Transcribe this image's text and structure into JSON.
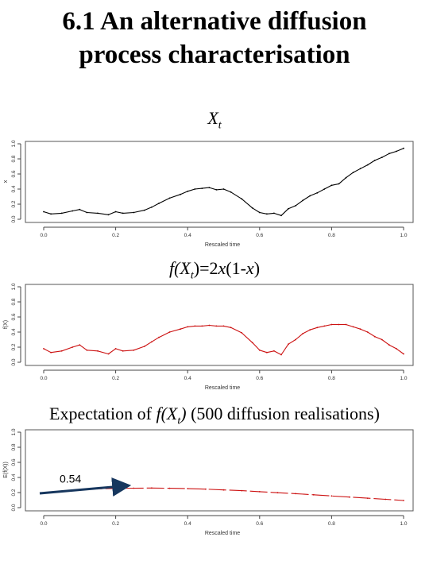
{
  "slide": {
    "title_line1": "6.1 An alternative diffusion",
    "title_line2": "process characterisation"
  },
  "chart_titles": {
    "c1_main": "X",
    "c1_sub": "t",
    "c2_a": "f(X",
    "c2_sub": "t",
    "c2_b": ")=2",
    "c2_c": "x",
    "c2_d": "(1-",
    "c2_e": "x",
    "c2_f": ")",
    "c3_a": "Expectation of ",
    "c3_b": "f(X",
    "c3_sub": "t",
    "c3_c": ")",
    "c3_d": " (500 diffusion realisations)"
  },
  "colors": {
    "path1": "#000000",
    "path2": "#cc1111",
    "path3": "#cc1111",
    "arrow": "#17375e"
  },
  "chart_data": [
    {
      "type": "line",
      "xlabel": "Rescaled time",
      "ylabel": "x",
      "xlim": [
        0,
        1
      ],
      "ylim": [
        0,
        1
      ],
      "xticks": [
        "0.0",
        "0.2",
        "0.4",
        "0.6",
        "0.8",
        "1.0"
      ],
      "yticks": [
        "0.0",
        "0.2",
        "0.4",
        "0.6",
        "0.8",
        "1.0"
      ],
      "x": [
        0.0,
        0.02,
        0.05,
        0.08,
        0.1,
        0.12,
        0.15,
        0.18,
        0.2,
        0.22,
        0.25,
        0.28,
        0.3,
        0.32,
        0.35,
        0.38,
        0.4,
        0.42,
        0.44,
        0.46,
        0.48,
        0.5,
        0.52,
        0.55,
        0.58,
        0.6,
        0.62,
        0.64,
        0.66,
        0.68,
        0.7,
        0.72,
        0.74,
        0.76,
        0.78,
        0.8,
        0.82,
        0.84,
        0.86,
        0.88,
        0.9,
        0.92,
        0.94,
        0.96,
        0.98,
        1.0
      ],
      "y": [
        0.1,
        0.07,
        0.08,
        0.11,
        0.13,
        0.09,
        0.08,
        0.06,
        0.1,
        0.08,
        0.09,
        0.12,
        0.16,
        0.21,
        0.28,
        0.33,
        0.37,
        0.4,
        0.41,
        0.42,
        0.39,
        0.4,
        0.36,
        0.27,
        0.15,
        0.09,
        0.07,
        0.08,
        0.05,
        0.14,
        0.18,
        0.25,
        0.31,
        0.35,
        0.4,
        0.45,
        0.47,
        0.55,
        0.62,
        0.67,
        0.72,
        0.78,
        0.82,
        0.87,
        0.9,
        0.94
      ]
    },
    {
      "type": "line",
      "xlabel": "Rescaled time",
      "ylabel": "f(X)",
      "xlim": [
        0,
        1
      ],
      "ylim": [
        0,
        1
      ],
      "xticks": [
        "0.0",
        "0.2",
        "0.4",
        "0.6",
        "0.8",
        "1.0"
      ],
      "yticks": [
        "0.0",
        "0.2",
        "0.4",
        "0.6",
        "0.8",
        "1.0"
      ],
      "x": [
        0.0,
        0.02,
        0.05,
        0.08,
        0.1,
        0.12,
        0.15,
        0.18,
        0.2,
        0.22,
        0.25,
        0.28,
        0.3,
        0.32,
        0.35,
        0.38,
        0.4,
        0.42,
        0.44,
        0.46,
        0.48,
        0.5,
        0.52,
        0.55,
        0.58,
        0.6,
        0.62,
        0.64,
        0.66,
        0.68,
        0.7,
        0.72,
        0.74,
        0.76,
        0.78,
        0.8,
        0.82,
        0.84,
        0.86,
        0.88,
        0.9,
        0.92,
        0.94,
        0.96,
        0.98,
        1.0
      ],
      "y": [
        0.18,
        0.13,
        0.15,
        0.2,
        0.23,
        0.16,
        0.15,
        0.11,
        0.18,
        0.15,
        0.16,
        0.21,
        0.27,
        0.33,
        0.4,
        0.44,
        0.47,
        0.48,
        0.48,
        0.49,
        0.48,
        0.48,
        0.46,
        0.39,
        0.26,
        0.16,
        0.13,
        0.15,
        0.1,
        0.24,
        0.3,
        0.38,
        0.43,
        0.46,
        0.48,
        0.5,
        0.5,
        0.5,
        0.47,
        0.44,
        0.4,
        0.34,
        0.3,
        0.23,
        0.18,
        0.11
      ]
    },
    {
      "type": "line",
      "xlabel": "Rescaled time",
      "ylabel": "E(f(X))",
      "xlim": [
        0,
        1
      ],
      "ylim": [
        0,
        1
      ],
      "xticks": [
        "0.0",
        "0.2",
        "0.4",
        "0.6",
        "0.8",
        "1.0"
      ],
      "yticks": [
        "0.0",
        "0.2",
        "0.4",
        "0.6",
        "0.8",
        "1.0"
      ],
      "x": [
        0.0,
        0.05,
        0.1,
        0.15,
        0.2,
        0.25,
        0.3,
        0.35,
        0.4,
        0.45,
        0.5,
        0.55,
        0.6,
        0.65,
        0.7,
        0.75,
        0.8,
        0.85,
        0.9,
        0.95,
        1.0
      ],
      "y": [
        0.19,
        0.22,
        0.24,
        0.25,
        0.255,
        0.258,
        0.26,
        0.257,
        0.253,
        0.245,
        0.235,
        0.225,
        0.212,
        0.198,
        0.185,
        0.17,
        0.155,
        0.14,
        0.125,
        0.11,
        0.095
      ],
      "annotation": "0.54"
    }
  ]
}
